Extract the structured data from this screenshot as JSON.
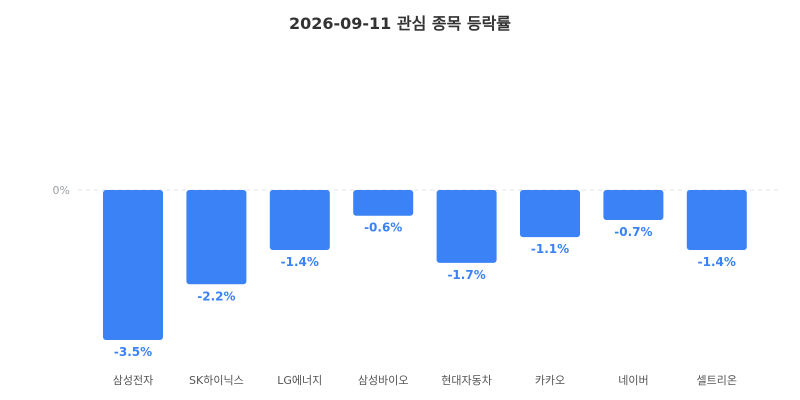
{
  "chart_data": {
    "type": "bar",
    "title": "2026-09-11 관심 종목 등락률",
    "xlabel": "",
    "ylabel": "",
    "categories": [
      "삼성전자",
      "SK하이닉스",
      "LG에너지",
      "삼성바이오",
      "현대자동차",
      "카카오",
      "네이버",
      "셀트리온"
    ],
    "values": [
      -3.5,
      -2.2,
      -1.4,
      -0.6,
      -1.7,
      -1.1,
      -0.7,
      -1.4
    ],
    "value_labels": [
      "-3.5%",
      "-2.2%",
      "-1.4%",
      "-0.6%",
      "-1.7%",
      "-1.1%",
      "-0.7%",
      "-1.4%"
    ],
    "y_tick_labels": [
      "0%"
    ],
    "y_ticks": [
      0
    ],
    "ylim": [
      -3.5,
      0
    ],
    "grid": false,
    "legend": "none",
    "colors": {
      "bar": "#3b82f6",
      "value_label": "#3b82f6",
      "zero_line": "#e2e5e9"
    }
  }
}
